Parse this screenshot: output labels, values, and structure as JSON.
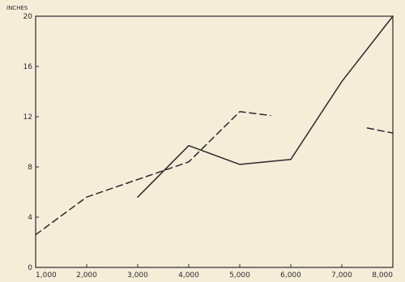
{
  "chart_data": {
    "type": "line",
    "title": "",
    "xlabel": "",
    "ylabel": "INCHES",
    "xlim": [
      1000,
      8000
    ],
    "ylim": [
      0,
      20
    ],
    "x_ticks": [
      1000,
      2000,
      3000,
      4000,
      5000,
      6000,
      7000,
      8000
    ],
    "x_tick_labels": [
      "1,000",
      "2,000",
      "3,000",
      "4,000",
      "5,000",
      "6,000",
      "7,000",
      "8,000"
    ],
    "y_ticks": [
      0,
      4,
      8,
      12,
      16,
      20
    ],
    "y_tick_labels": [
      "0",
      "4",
      "8",
      "12",
      "16",
      "20"
    ],
    "grid": false,
    "legend": "none",
    "colors": {
      "background": "#f6edd9",
      "ink": "#2b2b2b"
    },
    "series": [
      {
        "style": "solid",
        "points": [
          [
            3000,
            5.6
          ],
          [
            4000,
            9.7
          ],
          [
            5000,
            8.2
          ],
          [
            6000,
            8.6
          ],
          [
            7000,
            14.8
          ],
          [
            8000,
            20.0
          ]
        ]
      },
      {
        "style": "dashed",
        "points": [
          [
            1000,
            2.6
          ],
          [
            2000,
            5.6
          ],
          [
            3000,
            7.0
          ],
          [
            4000,
            8.4
          ],
          [
            5000,
            12.4
          ],
          [
            5600,
            12.1
          ]
        ]
      },
      {
        "style": "dashed",
        "points": [
          [
            7500,
            11.1
          ],
          [
            8000,
            10.7
          ]
        ]
      }
    ]
  }
}
